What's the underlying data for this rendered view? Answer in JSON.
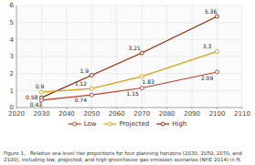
{
  "chart_data": {
    "type": "line",
    "x": [
      2030,
      2050,
      2070,
      2100
    ],
    "series": [
      {
        "name": "High",
        "color": "#8b2500",
        "values": [
          0.58,
          1.9,
          3.21,
          5.36
        ]
      },
      {
        "name": "Projected",
        "color": "#d4a017",
        "values": [
          0.9,
          1.12,
          1.83,
          3.3
        ]
      },
      {
        "name": "Low",
        "color": "#c0392b",
        "values": [
          0.43,
          0.74,
          1.15,
          2.09
        ]
      }
    ],
    "xlim": [
      2020,
      2110
    ],
    "ylim": [
      0,
      6
    ],
    "xticks": [
      2020,
      2030,
      2040,
      2050,
      2060,
      2070,
      2080,
      2090,
      2100,
      2110
    ],
    "yticks": [
      0,
      1,
      2,
      3,
      4,
      5,
      6
    ],
    "grid": true,
    "data_labels": true,
    "marker": "circle",
    "caption": "Figure 1.   Relative sea level rise projections for four planning horizons (2030, 2050, 2070, and\n2100), including low, projected, and high greenhouse gas emission scenarios (NHE 2014) in ft."
  }
}
